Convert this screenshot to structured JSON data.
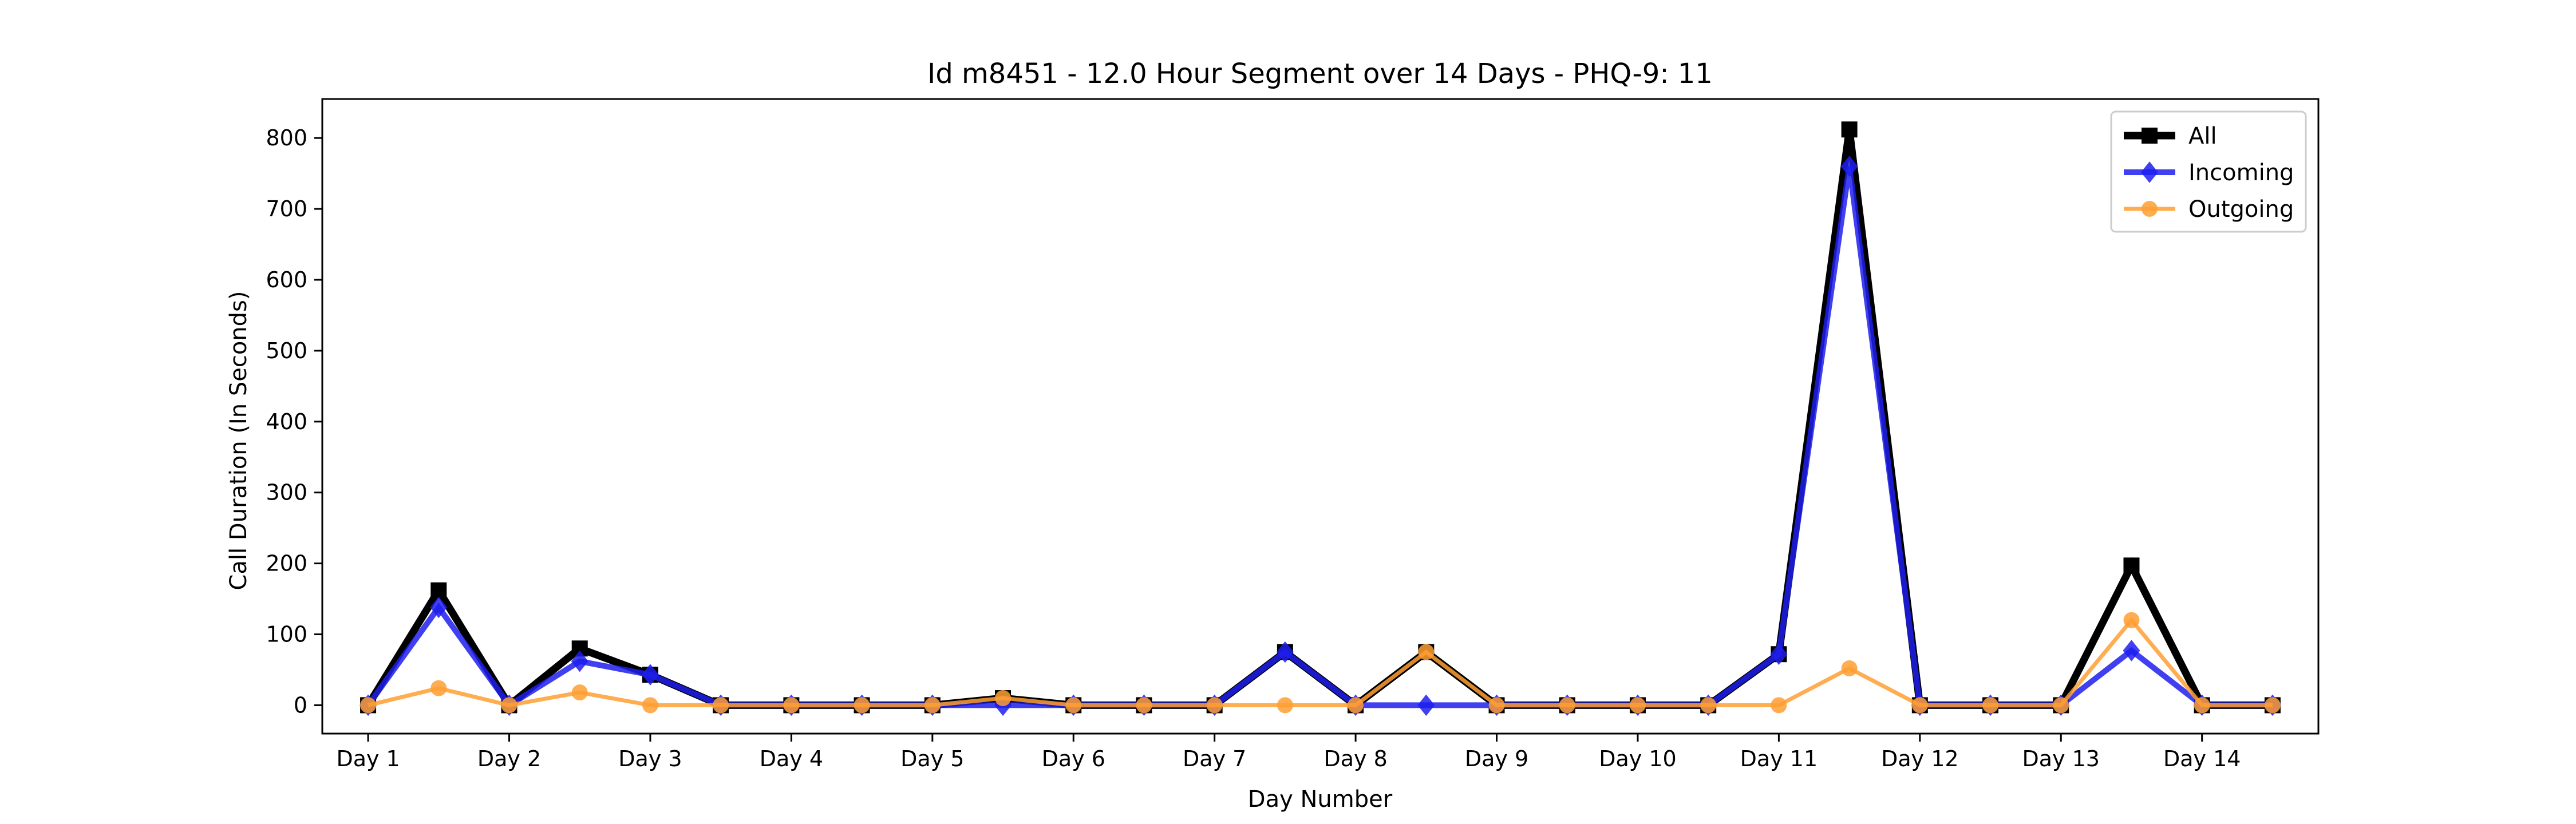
{
  "chart_data": {
    "type": "line",
    "title": "Id m8451 - 12.0 Hour Segment over 14 Days - PHQ-9: 11",
    "xlabel": "Day Number",
    "ylabel": "Call Duration (In Seconds)",
    "x_tick_labels": [
      "Day 1",
      "Day 2",
      "Day 3",
      "Day 4",
      "Day 5",
      "Day 6",
      "Day 7",
      "Day 8",
      "Day 9",
      "Day 10",
      "Day 11",
      "Day 12",
      "Day 13",
      "Day 14"
    ],
    "y_ticks": [
      0,
      100,
      200,
      300,
      400,
      500,
      600,
      700,
      800
    ],
    "ylim": [
      -40,
      855
    ],
    "xlim": [
      -0.65,
      27.65
    ],
    "legend_position": "top-right",
    "grid": false,
    "x": [
      0,
      1,
      2,
      3,
      4,
      5,
      6,
      7,
      8,
      9,
      10,
      11,
      12,
      13,
      14,
      15,
      16,
      17,
      18,
      19,
      20,
      21,
      22,
      23,
      24,
      25,
      26,
      27
    ],
    "series": [
      {
        "name": "All",
        "color": "#000000",
        "marker": "square",
        "values": [
          0,
          162,
          0,
          80,
          43,
          0,
          0,
          0,
          0,
          10,
          0,
          0,
          0,
          75,
          0,
          75,
          0,
          0,
          0,
          0,
          72,
          812,
          0,
          0,
          0,
          197,
          0,
          0
        ]
      },
      {
        "name": "Incoming",
        "color": "#1f1fef",
        "marker": "diamond",
        "values": [
          0,
          138,
          0,
          62,
          43,
          0,
          0,
          0,
          0,
          0,
          0,
          0,
          0,
          75,
          0,
          0,
          0,
          0,
          0,
          0,
          72,
          760,
          0,
          0,
          0,
          77,
          0,
          0
        ]
      },
      {
        "name": "Outgoing",
        "color": "#ff9f33",
        "marker": "circle",
        "values": [
          0,
          24,
          0,
          18,
          0,
          0,
          0,
          0,
          0,
          10,
          0,
          0,
          0,
          0,
          0,
          75,
          0,
          0,
          0,
          0,
          0,
          52,
          0,
          0,
          0,
          120,
          0,
          0
        ]
      }
    ]
  }
}
